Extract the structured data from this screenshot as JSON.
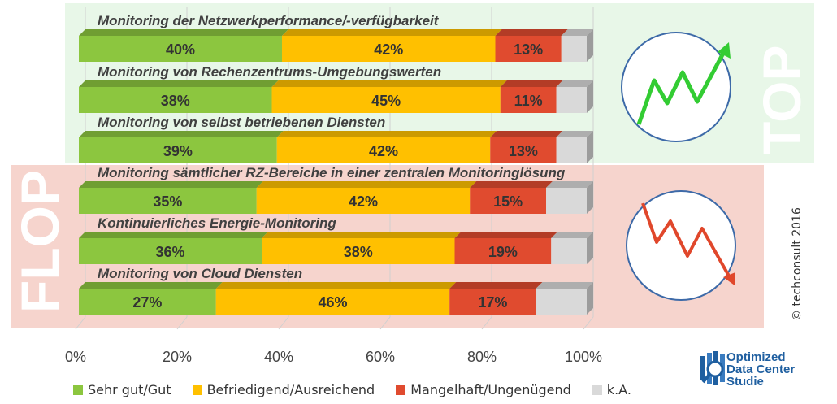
{
  "chart_data": {
    "type": "bar",
    "orientation": "horizontal",
    "stacked": true,
    "categories": [
      "Monitoring der Netzwerkperformance/-verfügbarkeit",
      "Monitoring von Rechenzentrums-Umgebungswerten",
      "Monitoring von selbst betriebenen Diensten",
      "Monitoring sämtlicher RZ-Bereiche in einer zentralen Monitoringlösung",
      "Kontinuierliches Energie-Monitoring",
      "Monitoring von Cloud Diensten"
    ],
    "series": [
      {
        "name": "Sehr gut/Gut",
        "color": "#8cc63f",
        "values": [
          40,
          38,
          39,
          35,
          36,
          27
        ],
        "labels": [
          "40%",
          "38%",
          "39%",
          "35%",
          "36%",
          "27%"
        ]
      },
      {
        "name": "Befriedigend/Ausreichend",
        "color": "#ffc000",
        "values": [
          42,
          45,
          42,
          42,
          38,
          46
        ],
        "labels": [
          "42%",
          "45%",
          "42%",
          "42%",
          "38%",
          "46%"
        ]
      },
      {
        "name": "Mangelhaft/Ungenügend",
        "color": "#e04b2f",
        "values": [
          13,
          11,
          13,
          15,
          19,
          17
        ],
        "labels": [
          "13%",
          "11%",
          "13%",
          "15%",
          "19%",
          "17%"
        ]
      },
      {
        "name": "k.A.",
        "color": "#d9d9d9",
        "values": [
          5,
          6,
          6,
          8,
          7,
          10
        ],
        "labels": [
          "",
          "",
          "",
          "",
          "",
          ""
        ]
      }
    ],
    "x_ticks": [
      "0%",
      "20%",
      "40%",
      "60%",
      "80%",
      "100%"
    ],
    "xlim": [
      0,
      100
    ],
    "grid": true,
    "legend_position": "bottom",
    "groups": [
      {
        "label": "TOP",
        "color": "#e8f7e8",
        "trend": "up",
        "trend_color": "#33cc33"
      },
      {
        "label": "FLOP",
        "color": "#f6d4cd",
        "trend": "down",
        "trend_color": "#e0472b"
      }
    ]
  },
  "copyright": "© techconsult 2016",
  "logo": {
    "line1": "Optimized",
    "line2": "Data Center",
    "line3": "Studie"
  }
}
